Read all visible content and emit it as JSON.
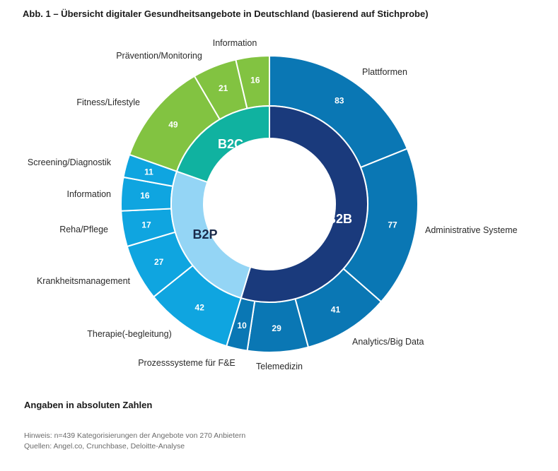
{
  "title": "Abb. 1 – Übersicht digitaler Gesundheitsangebote in Deutschland (basierend auf Stichprobe)",
  "units_note": "Angaben in absoluten Zahlen",
  "footnote_hint": "Hinweis: n=439 Kategorisierungen der Angebote von 270 Anbietern",
  "footnote_sources": "Quellen: Angel.co, Crunchbase, Deloitte-Analyse",
  "colors": {
    "B2B": "#1a3a7c",
    "B2B_outer": "#0a77b4",
    "B2P": "#94d5f5",
    "B2P_outer": "#0fa5e0",
    "B2C": "#10b2a0",
    "B2C_outer": "#82c341",
    "separator": "#ffffff"
  },
  "chart_data": {
    "type": "pie",
    "subtype": "nested-donut",
    "total": 439,
    "groups": [
      {
        "name": "B2B",
        "categories": [
          {
            "label": "Plattformen",
            "value": 83
          },
          {
            "label": "Administrative Systeme",
            "value": 77
          },
          {
            "label": "Analytics/Big Data",
            "value": 41
          },
          {
            "label": "Telemedizin",
            "value": 29
          },
          {
            "label": "Prozesssysteme für F&E",
            "value": 10
          }
        ]
      },
      {
        "name": "B2P",
        "categories": [
          {
            "label": "Therapie(-begleitung)",
            "value": 42
          },
          {
            "label": "Krankheitsmanagement",
            "value": 27
          },
          {
            "label": "Reha/Pflege",
            "value": 17
          },
          {
            "label": "Information",
            "value": 16
          },
          {
            "label": "Screening/Diagnostik",
            "value": 11
          }
        ]
      },
      {
        "name": "B2C",
        "categories": [
          {
            "label": "Fitness/Lifestyle",
            "value": 49
          },
          {
            "label": "Prävention/Monitoring",
            "value": 21
          },
          {
            "label": "Information",
            "value": 16
          }
        ]
      }
    ]
  }
}
